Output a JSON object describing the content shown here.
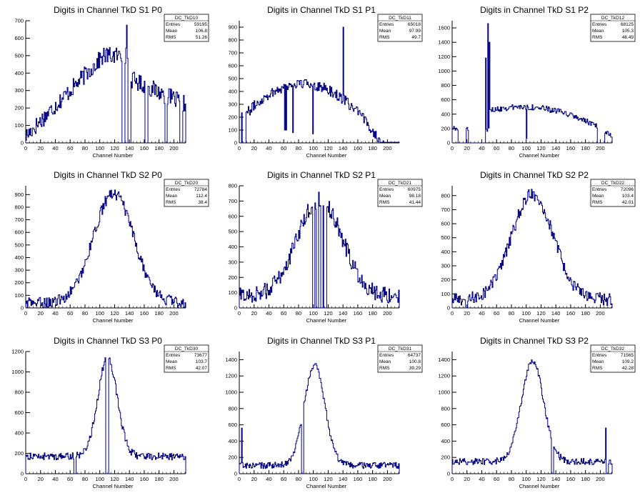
{
  "colors": {
    "line": "#000080",
    "axis": "#000000",
    "background": "#ffffff"
  },
  "chart_data": [
    {
      "type": "histogram",
      "title": "Digits in Channel TkD S1 P0",
      "xlabel": "Channel Number",
      "ylabel": "",
      "xlim": [
        0,
        216
      ],
      "ylim": [
        0,
        700
      ],
      "xticks": [
        0,
        20,
        40,
        60,
        80,
        100,
        120,
        140,
        160,
        180,
        200
      ],
      "yticks": [
        0,
        100,
        200,
        300,
        400,
        500,
        600,
        700
      ],
      "stats": {
        "name": "DC_TkD10",
        "rows": [
          {
            "label": "Entries",
            "value": "59195"
          },
          {
            "label": "Mean",
            "value": "106.8"
          },
          {
            "label": "RMS",
            "value": "51.26"
          }
        ]
      },
      "shape": "ramp",
      "scale": 500,
      "noise": 50,
      "spikes": [
        [
          136,
          675
        ]
      ],
      "gaps": [
        [
          130,
          133
        ],
        [
          138,
          141
        ],
        [
          161,
          164
        ],
        [
          188,
          190
        ],
        [
          208,
          211
        ]
      ],
      "dips": []
    },
    {
      "type": "histogram",
      "title": "Digits in Channel TkD S1 P1",
      "xlabel": "Channel Number",
      "ylabel": "",
      "xlim": [
        0,
        216
      ],
      "ylim": [
        0,
        950
      ],
      "xticks": [
        0,
        20,
        40,
        60,
        80,
        100,
        120,
        140,
        160,
        180,
        200
      ],
      "yticks": [
        0,
        100,
        200,
        300,
        400,
        500,
        600,
        700,
        800,
        900
      ],
      "stats": {
        "name": "DC_TkD11",
        "rows": [
          {
            "label": "Entries",
            "value": "65018"
          },
          {
            "label": "Mean",
            "value": "97.99"
          },
          {
            "label": "RMS",
            "value": "49.7"
          }
        ]
      },
      "shape": "arch",
      "scale": 460,
      "noise": 40,
      "spikes": [
        [
          140,
          900
        ]
      ],
      "gaps": [
        [
          0,
          2
        ],
        [
          4,
          8
        ]
      ],
      "dips": [
        [
          61,
          100
        ],
        [
          63,
          100
        ],
        [
          72,
          80
        ],
        [
          99,
          70
        ]
      ]
    },
    {
      "type": "histogram",
      "title": "Digits in Channel TkD S1 P2",
      "xlabel": "Channel Number",
      "ylabel": "",
      "xlim": [
        0,
        216
      ],
      "ylim": [
        0,
        1700
      ],
      "xticks": [
        0,
        20,
        40,
        60,
        80,
        100,
        120,
        140,
        160,
        180,
        200
      ],
      "yticks": [
        0,
        200,
        400,
        600,
        800,
        1000,
        1200,
        1400,
        1600
      ],
      "stats": {
        "name": "DC_TkD12",
        "rows": [
          {
            "label": "Entries",
            "value": "68125"
          },
          {
            "label": "Mean",
            "value": "105.3"
          },
          {
            "label": "RMS",
            "value": "46.49"
          }
        ]
      },
      "shape": "arch2",
      "scale": 500,
      "noise": 40,
      "spikes": [
        [
          45,
          1180
        ],
        [
          48,
          1660
        ],
        [
          50,
          1400
        ]
      ],
      "gaps": [
        [
          8,
          18
        ],
        [
          22,
          44
        ],
        [
          196,
          205
        ]
      ],
      "dips": [
        [
          100,
          60
        ]
      ]
    },
    {
      "type": "histogram",
      "title": "Digits in Channel TkD S2 P0",
      "xlabel": "Channel Number",
      "ylabel": "",
      "xlim": [
        0,
        216
      ],
      "ylim": [
        0,
        970
      ],
      "xticks": [
        0,
        20,
        40,
        60,
        80,
        100,
        120,
        140,
        160,
        180,
        200
      ],
      "yticks": [
        0,
        100,
        200,
        300,
        400,
        500,
        600,
        700,
        800,
        900
      ],
      "stats": {
        "name": "DC_TkD20",
        "rows": [
          {
            "label": "Entries",
            "value": "72784"
          },
          {
            "label": "Mean",
            "value": "112.4"
          },
          {
            "label": "RMS",
            "value": "38.4"
          }
        ]
      },
      "shape": "bell",
      "center": 118,
      "sigma": 27,
      "scale": 870,
      "base": 40,
      "noise": 45,
      "spikes": [],
      "gaps": [],
      "dips": []
    },
    {
      "type": "histogram",
      "title": "Digits in Channel TkD S2 P1",
      "xlabel": "Channel Number",
      "ylabel": "",
      "xlim": [
        0,
        216
      ],
      "ylim": [
        0,
        800
      ],
      "xticks": [
        0,
        20,
        40,
        60,
        80,
        100,
        120,
        140,
        160,
        180,
        200
      ],
      "yticks": [
        0,
        100,
        200,
        300,
        400,
        500,
        600,
        700,
        800
      ],
      "stats": {
        "name": "DC_TkD21",
        "rows": [
          {
            "label": "Entries",
            "value": "60975"
          },
          {
            "label": "Mean",
            "value": "98.18"
          },
          {
            "label": "RMS",
            "value": "41.44"
          }
        ]
      },
      "shape": "bell",
      "center": 108,
      "sigma": 30,
      "scale": 630,
      "base": 80,
      "noise": 55,
      "spikes": [],
      "gaps": [
        [
          99,
          101
        ],
        [
          104,
          106
        ],
        [
          110,
          112
        ],
        [
          114,
          117
        ]
      ],
      "dips": []
    },
    {
      "type": "histogram",
      "title": "Digits in Channel TkD S2 P2",
      "xlabel": "Channel Number",
      "ylabel": "",
      "xlim": [
        0,
        216
      ],
      "ylim": [
        0,
        870
      ],
      "xticks": [
        0,
        20,
        40,
        60,
        80,
        100,
        120,
        140,
        160,
        180,
        200
      ],
      "yticks": [
        0,
        100,
        200,
        300,
        400,
        500,
        600,
        700,
        800
      ],
      "stats": {
        "name": "DC_TkD22",
        "rows": [
          {
            "label": "Entries",
            "value": "72096"
          },
          {
            "label": "Mean",
            "value": "103.4"
          },
          {
            "label": "RMS",
            "value": "42.01"
          }
        ]
      },
      "shape": "bell",
      "center": 108,
      "sigma": 28,
      "scale": 750,
      "base": 60,
      "noise": 45,
      "spikes": [],
      "gaps": [
        [
          18,
          20
        ]
      ],
      "dips": []
    },
    {
      "type": "histogram",
      "title": "Digits in Channel TkD S3 P0",
      "xlabel": "Channel Number",
      "ylabel": "",
      "xlim": [
        0,
        216
      ],
      "ylim": [
        0,
        1200
      ],
      "xticks": [
        0,
        20,
        40,
        60,
        80,
        100,
        120,
        140,
        160,
        180,
        200
      ],
      "yticks": [
        0,
        200,
        400,
        600,
        800,
        1000,
        1200
      ],
      "stats": {
        "name": "DC_TkD30",
        "rows": [
          {
            "label": "Entries",
            "value": "73677"
          },
          {
            "label": "Mean",
            "value": "103.7"
          },
          {
            "label": "RMS",
            "value": "42.07"
          }
        ]
      },
      "shape": "bell",
      "center": 110,
      "sigma": 13,
      "scale": 970,
      "base": 170,
      "noise": 35,
      "spikes": [],
      "gaps": [
        [
          65,
          67
        ],
        [
          108,
          111
        ]
      ],
      "dips": []
    },
    {
      "type": "histogram",
      "title": "Digits in Channel TkD S3 P1",
      "xlabel": "Channel Number",
      "ylabel": "",
      "xlim": [
        0,
        216
      ],
      "ylim": [
        0,
        1500
      ],
      "xticks": [
        0,
        20,
        40,
        60,
        80,
        100,
        120,
        140,
        160,
        180,
        200
      ],
      "yticks": [
        0,
        200,
        400,
        600,
        800,
        1000,
        1200,
        1400
      ],
      "stats": {
        "name": "DC_TkD31",
        "rows": [
          {
            "label": "Entries",
            "value": "64737"
          },
          {
            "label": "Mean",
            "value": "100.8"
          },
          {
            "label": "RMS",
            "value": "39.29"
          }
        ]
      },
      "shape": "bell",
      "center": 101,
      "sigma": 14,
      "scale": 1230,
      "base": 100,
      "noise": 40,
      "spikes": [
        [
          3,
          560
        ]
      ],
      "gaps": [
        [
          84,
          86
        ]
      ],
      "dips": []
    },
    {
      "type": "histogram",
      "title": "Digits in Channel TkD S3 P2",
      "xlabel": "Channel Number",
      "ylabel": "",
      "xlim": [
        0,
        216
      ],
      "ylim": [
        0,
        1500
      ],
      "xticks": [
        0,
        20,
        40,
        60,
        80,
        100,
        120,
        140,
        160,
        180,
        200
      ],
      "yticks": [
        0,
        200,
        400,
        600,
        800,
        1000,
        1200,
        1400
      ],
      "stats": {
        "name": "DC_TkD32",
        "rows": [
          {
            "label": "Entries",
            "value": "71565"
          },
          {
            "label": "Mean",
            "value": "109.2"
          },
          {
            "label": "RMS",
            "value": "42.28"
          }
        ]
      },
      "shape": "bell",
      "center": 108,
      "sigma": 15,
      "scale": 1230,
      "base": 150,
      "noise": 40,
      "spikes": [
        [
          207,
          560
        ]
      ],
      "gaps": [
        [
          134,
          136
        ],
        [
          208,
          210
        ]
      ],
      "dips": []
    }
  ]
}
